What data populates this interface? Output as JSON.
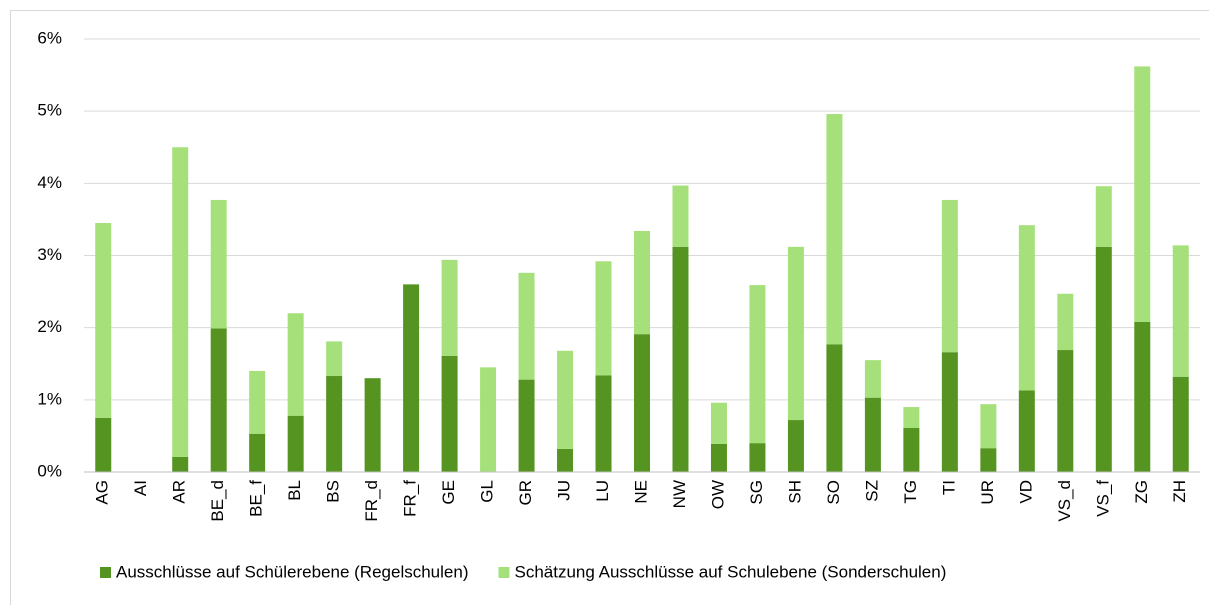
{
  "chart_data": {
    "type": "stacked_bar",
    "categories": [
      "AG",
      "AI",
      "AR",
      "BE_d",
      "BE_f",
      "BL",
      "BS",
      "FR_d",
      "FR_f",
      "GE",
      "GL",
      "GR",
      "JU",
      "LU",
      "NE",
      "NW",
      "OW",
      "SG",
      "SH",
      "SO",
      "SZ",
      "TG",
      "TI",
      "UR",
      "VD",
      "VS_d",
      "VS_f",
      "ZG",
      "ZH"
    ],
    "series": [
      {
        "name": "Ausschlüsse auf Schülerebene (Regelschulen)",
        "color": "#559421",
        "values": [
          0.75,
          0,
          0.21,
          1.99,
          0.53,
          0.78,
          1.33,
          1.3,
          2.6,
          1.61,
          0,
          1.28,
          0.32,
          1.34,
          1.91,
          3.12,
          0.39,
          0.4,
          0.72,
          1.77,
          1.03,
          0.61,
          1.66,
          0.33,
          1.13,
          1.69,
          3.12,
          2.08,
          1.32
        ]
      },
      {
        "name": "Schätzung Ausschlüsse auf Schulebene (Sonderschulen)",
        "color": "#a5e07a",
        "values": [
          2.7,
          0,
          4.29,
          1.78,
          0.87,
          1.42,
          0.48,
          0,
          0,
          1.33,
          1.45,
          1.48,
          1.36,
          1.58,
          1.43,
          0.85,
          0.57,
          2.19,
          2.4,
          3.19,
          0.52,
          0.29,
          2.11,
          0.61,
          2.29,
          0.78,
          0.84,
          3.54,
          1.82
        ]
      }
    ],
    "ylim": [
      0,
      6
    ],
    "yticks": [
      {
        "value": 0,
        "label": "0%"
      },
      {
        "value": 1,
        "label": "1%"
      },
      {
        "value": 2,
        "label": "2%"
      },
      {
        "value": 3,
        "label": "3%"
      },
      {
        "value": 4,
        "label": "4%"
      },
      {
        "value": 5,
        "label": "5%"
      },
      {
        "value": 6,
        "label": "6%"
      }
    ],
    "grid": true,
    "legend": "bottom"
  }
}
